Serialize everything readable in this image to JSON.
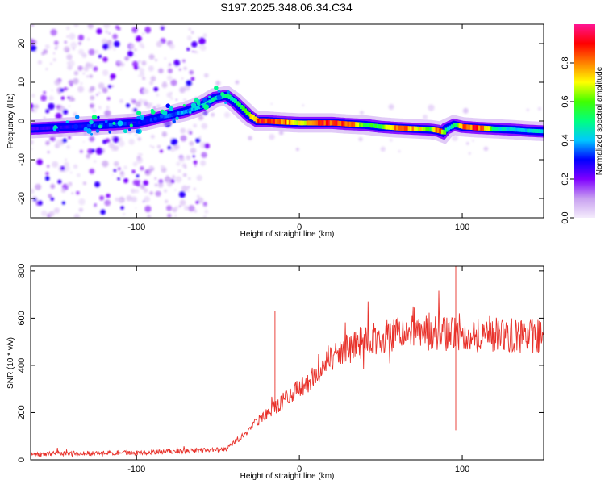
{
  "title": "S197.2025.348.06.34.C34",
  "chart_data": [
    {
      "type": "heatmap",
      "name": "spectrogram",
      "xlabel": "Height of straight line (km)",
      "ylabel": "Frequency (Hz)",
      "xlim": [
        -165,
        150
      ],
      "ylim": [
        -25,
        25
      ],
      "xticks": [
        -100,
        0,
        100
      ],
      "yticks": [
        -20,
        -10,
        0,
        10,
        20
      ],
      "colorbar": {
        "label": "Normalized spectral amplitude",
        "range": [
          0,
          1
        ],
        "ticks": [
          "0.0",
          "0.2",
          "0.4",
          "0.6",
          "0.8"
        ],
        "tick_values": [
          0.0,
          0.2,
          0.4,
          0.6,
          0.8
        ],
        "colormap": [
          "#f4ecfc",
          "#c8a0f0",
          "#8000ff",
          "#0000ff",
          "#00c8ff",
          "#00ff80",
          "#40ff00",
          "#ffff00",
          "#ff8000",
          "#ff0000",
          "#ff1493"
        ]
      },
      "ridge": {
        "description": "dominant frequency trace",
        "x": [
          -165,
          -140,
          -120,
          -100,
          -90,
          -80,
          -70,
          -60,
          -52,
          -45,
          -40,
          -35,
          -30,
          -26,
          -20,
          -10,
          0,
          10,
          20,
          30,
          40,
          50,
          60,
          70,
          80,
          85,
          88,
          90,
          95,
          100,
          110,
          120,
          130,
          140,
          150
        ],
        "y": [
          -2,
          -1.5,
          -1,
          -0.5,
          0.5,
          1.5,
          2.5,
          4,
          6,
          6.5,
          5,
          3,
          1,
          0,
          0,
          -0.3,
          -0.5,
          -0.5,
          -0.5,
          -0.8,
          -1,
          -1.5,
          -1.8,
          -2,
          -2.2,
          -2.5,
          -3,
          -2,
          -1,
          -1.5,
          -1.8,
          -2,
          -2.2,
          -2.5,
          -2.7
        ],
        "peak_amplitude": [
          0.25,
          0.3,
          0.35,
          0.3,
          0.35,
          0.35,
          0.4,
          0.45,
          0.5,
          0.5,
          0.5,
          0.6,
          0.75,
          0.9,
          0.92,
          0.85,
          0.7,
          0.95,
          0.9,
          0.9,
          0.55,
          0.6,
          0.88,
          0.82,
          0.6,
          0.9,
          0.7,
          0.4,
          0.55,
          0.85,
          0.9,
          0.5,
          0.45,
          0.45,
          0.45
        ]
      }
    },
    {
      "type": "line",
      "name": "snr",
      "xlabel": "Height of straight line (km)",
      "ylabel": "SNR (10 * v/v)",
      "xlim": [
        -165,
        150
      ],
      "ylim": [
        0,
        820
      ],
      "xticks": [
        -100,
        0,
        100
      ],
      "yticks": [
        0,
        200,
        400,
        600,
        800
      ],
      "color": "#e8312a",
      "trend": {
        "x": [
          -165,
          -100,
          -60,
          -45,
          -35,
          -25,
          -15,
          -5,
          5,
          15,
          25,
          35,
          45,
          60,
          80,
          100,
          120,
          150
        ],
        "y": [
          25,
          30,
          40,
          45,
          100,
          170,
          220,
          280,
          320,
          400,
          450,
          490,
          515,
          530,
          540,
          530,
          530,
          520
        ]
      },
      "spikes": [
        {
          "x": -15,
          "y": 630
        },
        {
          "x": 96,
          "y": 820
        },
        {
          "x": 96,
          "y": 125
        }
      ]
    }
  ]
}
